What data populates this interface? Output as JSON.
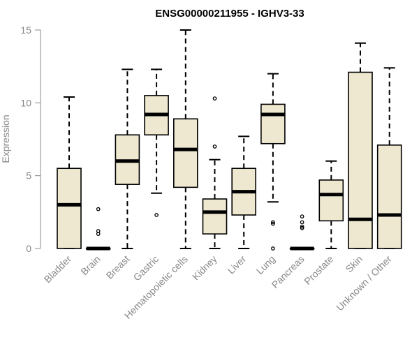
{
  "chart_data": {
    "type": "boxplot",
    "title": "ENSG00000211955 - IGHV3-33",
    "xlabel": "",
    "ylabel": "Expression",
    "ylim": [
      0,
      15
    ],
    "yticks": [
      0,
      5,
      10,
      15
    ],
    "colors": {
      "box_fill": "#EEE8D0",
      "stroke": "#000000",
      "axis_text": "#888888"
    },
    "categories": [
      "Bladder",
      "Brain",
      "Breast",
      "Gastric",
      "Hematopoietic cells",
      "Kidney",
      "Liver",
      "Lung",
      "Pancreas",
      "Prostate",
      "Skin",
      "Unknown / Other"
    ],
    "series": [
      {
        "name": "Bladder",
        "min": 0,
        "q1": 0,
        "median": 3.0,
        "q3": 5.5,
        "max": 10.4,
        "outliers": []
      },
      {
        "name": "Brain",
        "min": 0,
        "q1": 0,
        "median": 0,
        "q3": 0,
        "max": 0,
        "outliers": [
          1.0,
          1.2,
          2.7
        ]
      },
      {
        "name": "Breast",
        "min": 0,
        "q1": 4.4,
        "median": 6.0,
        "q3": 7.8,
        "max": 12.3,
        "outliers": []
      },
      {
        "name": "Gastric",
        "min": 3.8,
        "q1": 7.8,
        "median": 9.2,
        "q3": 10.5,
        "max": 12.3,
        "outliers": [
          2.3
        ]
      },
      {
        "name": "Hematopoietic cells",
        "min": 0,
        "q1": 4.2,
        "median": 6.8,
        "q3": 8.9,
        "max": 15.0,
        "outliers": []
      },
      {
        "name": "Kidney",
        "min": 0,
        "q1": 1.0,
        "median": 2.5,
        "q3": 3.4,
        "max": 6.1,
        "outliers": [
          7.0,
          10.3
        ]
      },
      {
        "name": "Liver",
        "min": 0,
        "q1": 2.3,
        "median": 3.9,
        "q3": 5.5,
        "max": 7.7,
        "outliers": []
      },
      {
        "name": "Lung",
        "min": 3.2,
        "q1": 7.2,
        "median": 9.2,
        "q3": 9.9,
        "max": 12.0,
        "outliers": [
          0,
          1.7,
          1.8
        ]
      },
      {
        "name": "Pancreas",
        "min": 0,
        "q1": 0,
        "median": 0,
        "q3": 0,
        "max": 0,
        "outliers": [
          1.4,
          1.5,
          1.8,
          2.2
        ]
      },
      {
        "name": "Prostate",
        "min": 0,
        "q1": 1.9,
        "median": 3.7,
        "q3": 4.7,
        "max": 6.0,
        "outliers": []
      },
      {
        "name": "Skin",
        "min": 0,
        "q1": 0,
        "median": 2.0,
        "q3": 12.1,
        "max": 14.1,
        "outliers": []
      },
      {
        "name": "Unknown / Other",
        "min": 0,
        "q1": 0,
        "median": 2.3,
        "q3": 7.1,
        "max": 12.4,
        "outliers": []
      }
    ]
  }
}
